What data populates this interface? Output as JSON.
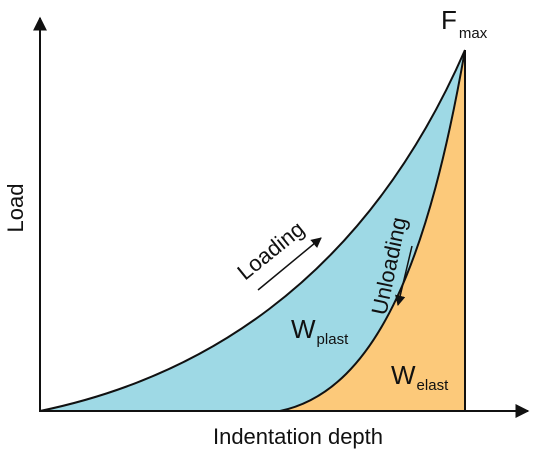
{
  "axes": {
    "x_label": "Indentation depth",
    "y_label": "Load"
  },
  "curves": {
    "loading": "Loading",
    "unloading": "Unloading"
  },
  "regions": {
    "plastic": {
      "symbol": "W",
      "subscript": "plast"
    },
    "elastic": {
      "symbol": "W",
      "subscript": "elast"
    }
  },
  "peak": {
    "symbol": "F",
    "subscript": "max"
  },
  "colors": {
    "plastic_fill": "#9ed9e5",
    "elastic_fill": "#fcc97a",
    "line": "#111111",
    "text": "#111111"
  }
}
